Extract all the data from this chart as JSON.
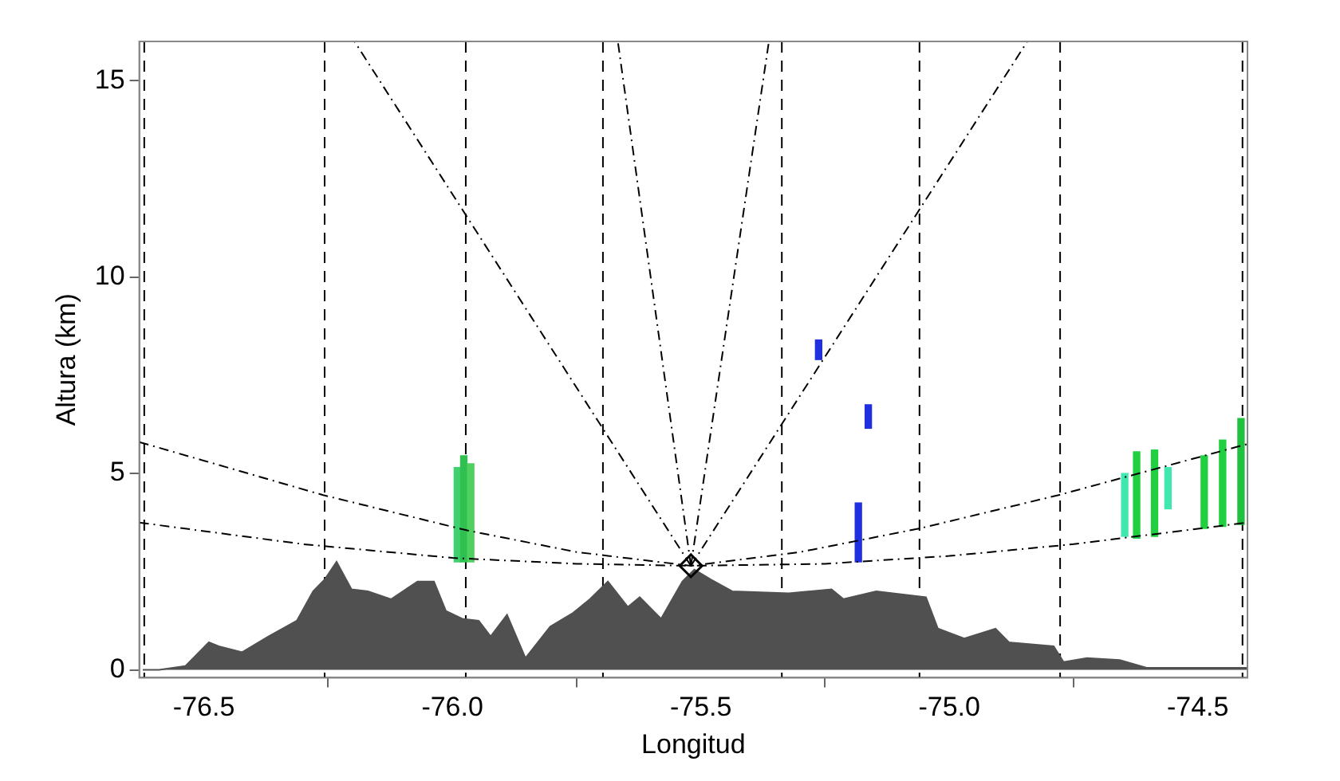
{
  "chart_data": {
    "type": "area",
    "xlabel": "Longitud",
    "ylabel": "Altura (km)",
    "xlim": [
      -76.63,
      -74.4
    ],
    "ylim": [
      -0.2,
      16
    ],
    "xticks": [
      {
        "value": -76.5,
        "label": "-76.5"
      },
      {
        "value": -76,
        "label": "-76.0"
      },
      {
        "value": -75.5,
        "label": "-75.5"
      },
      {
        "value": -75,
        "label": "-75.0"
      },
      {
        "value": -74.5,
        "label": "-74.5"
      }
    ],
    "yticks": [
      0,
      5,
      10,
      15
    ],
    "grid": false,
    "legend": false,
    "ref_lines": [
      {
        "axis": "x",
        "value": -76.62,
        "line_style": "dashed",
        "color": "#000000"
      },
      {
        "axis": "x",
        "value": -76.257,
        "line_style": "dashed",
        "color": "#000000"
      },
      {
        "axis": "x",
        "value": -75.973,
        "line_style": "dashed",
        "color": "#000000"
      },
      {
        "axis": "x",
        "value": -75.697,
        "line_style": "dashed",
        "color": "#000000"
      },
      {
        "axis": "x",
        "value": -75.337,
        "line_style": "dashed",
        "color": "#000000"
      },
      {
        "axis": "x",
        "value": -75.06,
        "line_style": "dashed",
        "color": "#000000"
      },
      {
        "axis": "x",
        "value": -74.777,
        "line_style": "dashed",
        "color": "#000000"
      },
      {
        "axis": "x",
        "value": -74.41,
        "line_style": "dashed",
        "color": "#000000"
      }
    ],
    "series": [
      {
        "color": "#505050",
        "x": [
          -76.623,
          -76.59,
          -76.537,
          -76.49,
          -76.47,
          -76.423,
          -76.37,
          -76.313,
          -76.28,
          -76.257,
          -76.233,
          -76.203,
          -76.17,
          -76.123,
          -76.07,
          -76.037,
          -76.013,
          -75.98,
          -75.947,
          -75.923,
          -75.89,
          -75.853,
          -75.803,
          -75.757,
          -75.723,
          -75.687,
          -75.647,
          -75.623,
          -75.58,
          -75.537,
          -75.513,
          -75.48,
          -75.437,
          -75.323,
          -75.237,
          -75.213,
          -75.147,
          -75.047,
          -75.023,
          -74.97,
          -74.907,
          -74.88,
          -74.79,
          -74.77,
          -74.723,
          -74.657,
          -74.603,
          -74.437,
          -74.4
        ],
        "values": [
          0,
          0,
          0.1,
          0.7,
          0.6,
          0.45,
          0.85,
          1.25,
          2,
          2.3,
          2.75,
          2.05,
          2,
          1.8,
          2.25,
          2.25,
          1.5,
          1.3,
          1.25,
          0.85,
          1.4,
          0.3,
          1.1,
          1.45,
          1.8,
          2.25,
          1.6,
          1.85,
          1.3,
          2.25,
          2.55,
          2.3,
          2,
          1.95,
          2.05,
          1.8,
          2,
          1.85,
          1.05,
          0.8,
          1.05,
          0.7,
          0.6,
          0.2,
          0.3,
          0.25,
          0.05,
          0.05,
          0.05
        ]
      },
      {
        "type": "line",
        "color": "#000000",
        "line_style": "dashed",
        "x": [
          -76.63,
          -76.3,
          -76,
          -75.75,
          -75.52,
          -75.25,
          -75,
          -74.75,
          -74.4
        ],
        "values": [
          3.75,
          3.2,
          2.85,
          2.7,
          2.65,
          2.7,
          2.9,
          3.2,
          3.75
        ]
      },
      {
        "type": "line",
        "color": "#000000",
        "line_style": "dashed",
        "x": [
          -76.63,
          -76.26,
          -75.97,
          -75.75,
          -75.52,
          -75.3,
          -75.06,
          -74.78,
          -74.4
        ],
        "values": [
          5.8,
          4.45,
          3.55,
          3,
          2.65,
          3,
          3.6,
          4.45,
          5.75
        ]
      },
      {
        "type": "line",
        "color": "#000000",
        "line_style": "dashed",
        "x": [
          -75.52,
          -76.197
        ],
        "values": [
          2.65,
          16
        ]
      },
      {
        "type": "line",
        "color": "#000000",
        "line_style": "dashed",
        "x": [
          -75.52,
          -75.667
        ],
        "values": [
          2.65,
          16
        ]
      },
      {
        "type": "line",
        "color": "#000000",
        "line_style": "dashed",
        "x": [
          -75.52,
          -75.363
        ],
        "values": [
          2.65,
          16
        ]
      },
      {
        "type": "line",
        "color": "#000000",
        "line_style": "dashed",
        "x": [
          -75.52,
          -74.843
        ],
        "values": [
          2.65,
          16
        ]
      },
      {
        "type": "bar",
        "x": [
          -75.99,
          -75.977,
          -75.963,
          -75.263,
          -75.183,
          -75.163,
          -74.647,
          -74.623,
          -74.587,
          -74.56,
          -74.487,
          -74.45,
          -74.413
        ],
        "base": [
          2.75,
          2.75,
          2.75,
          7.9,
          2.75,
          6.15,
          3.4,
          3.35,
          3.4,
          4.1,
          3.6,
          3.65,
          3.7
        ],
        "values": [
          2.4,
          2.7,
          2.5,
          0.5,
          1.5,
          0.6,
          1.6,
          2.2,
          2.2,
          1.05,
          1.85,
          2.2,
          2.7
        ],
        "colors": [
          "#40d070",
          "#30c050",
          "#50d060",
          "#2030e0",
          "#2030e0",
          "#2030e0",
          "#40e8b0",
          "#20d040",
          "#20d040",
          "#40e8b0",
          "#20d040",
          "#20d040",
          "#20c040"
        ]
      },
      {
        "type": "scatter",
        "color": "#000000",
        "marker": "diamond",
        "x": [
          -75.52
        ],
        "values": [
          2.65
        ]
      }
    ]
  }
}
